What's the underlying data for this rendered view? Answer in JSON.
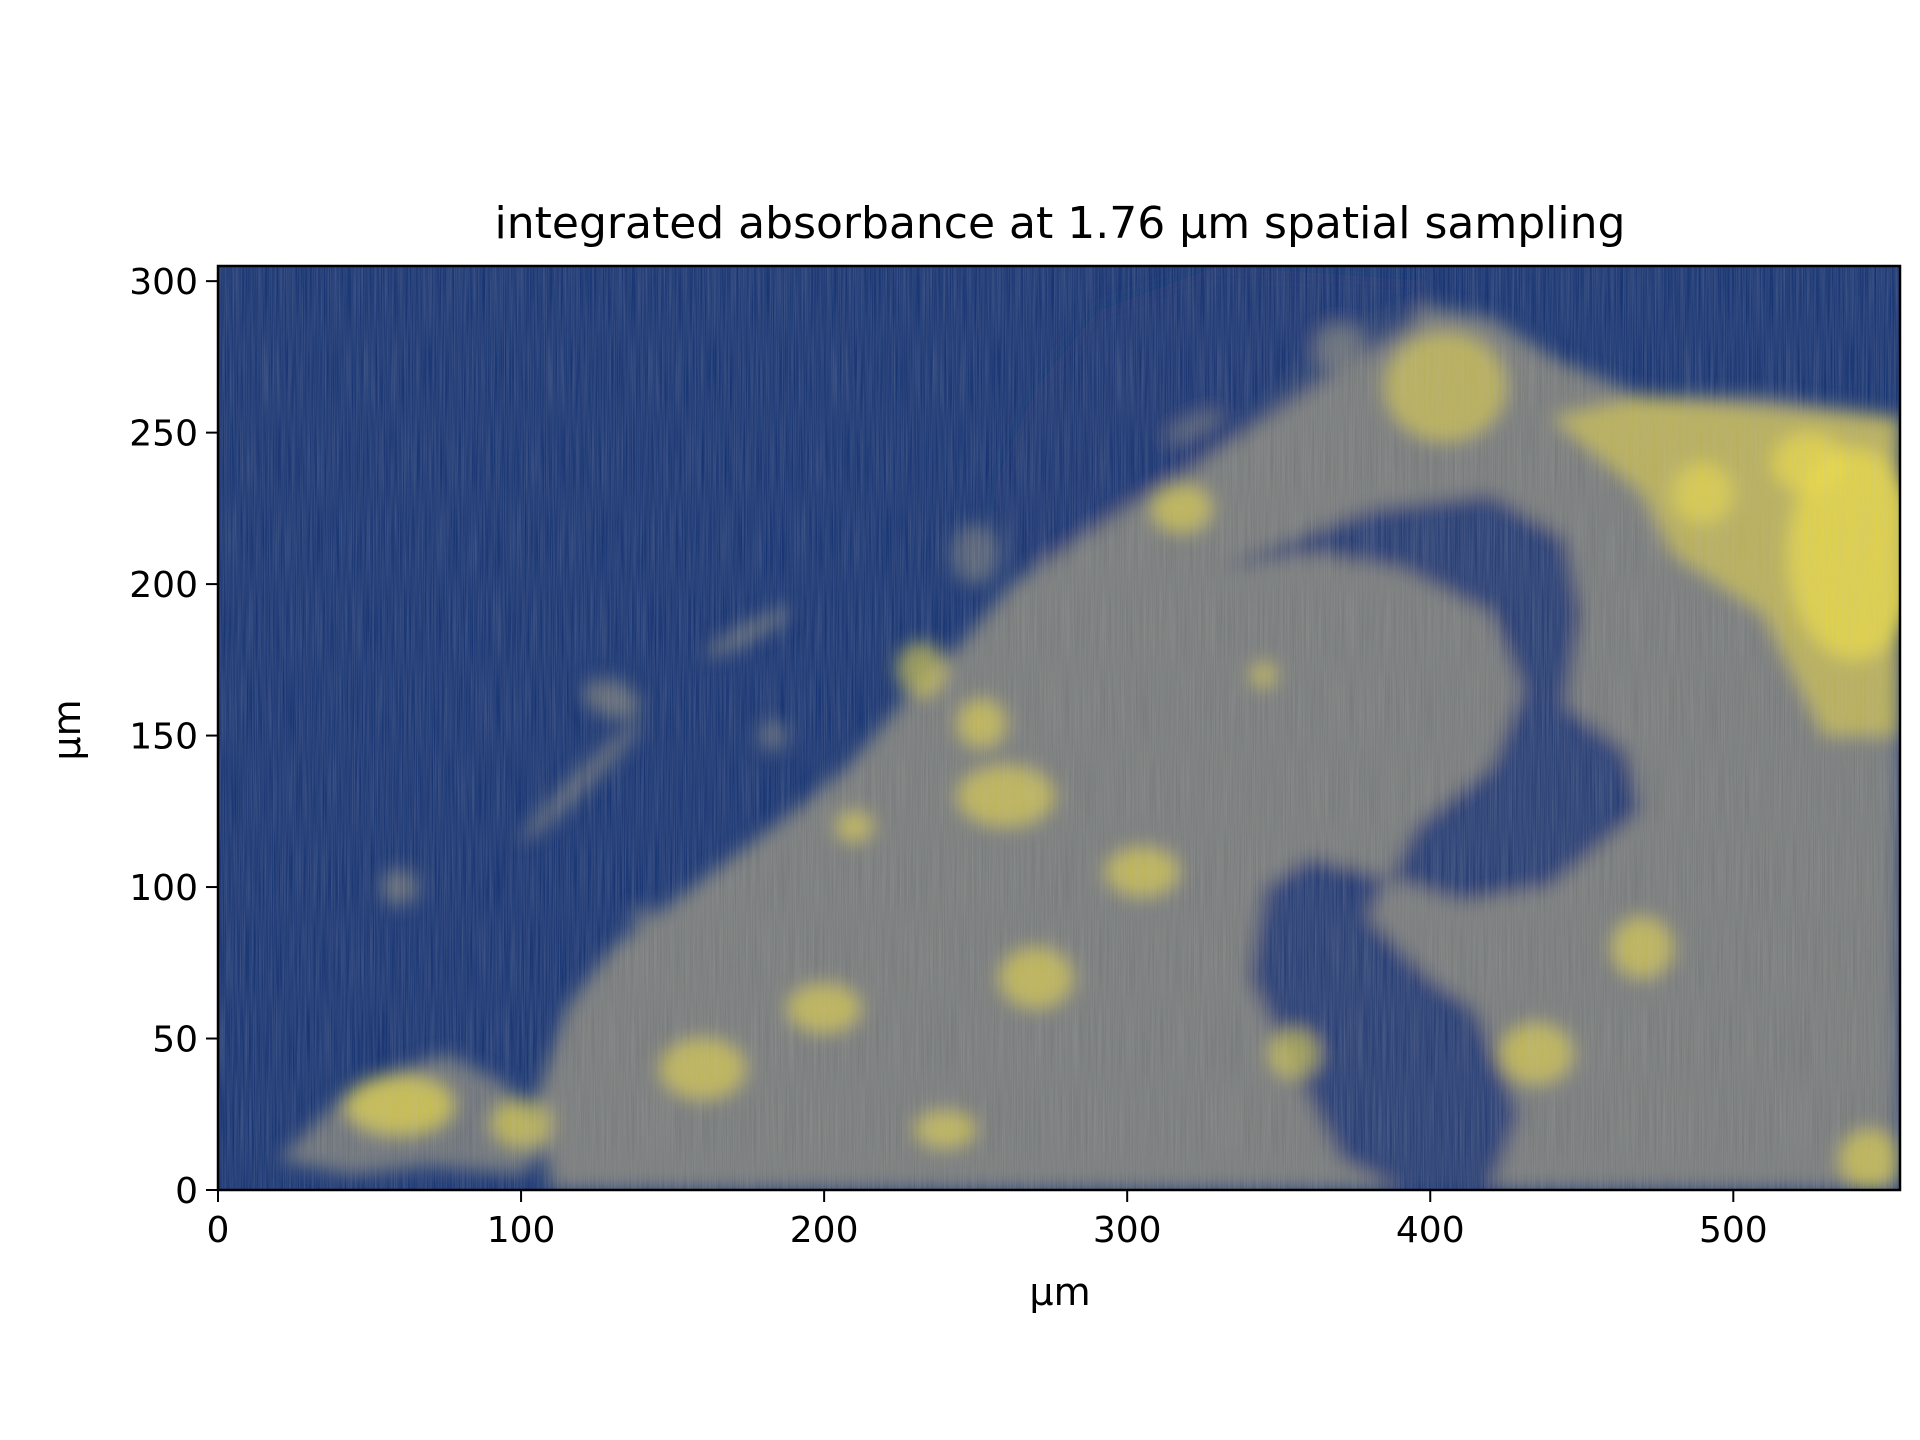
{
  "chart_data": {
    "type": "heatmap",
    "title": "integrated absorbance at 1.76 µm spatial sampling",
    "xlabel": "µm",
    "ylabel": "µm",
    "xlim": [
      0,
      555
    ],
    "ylim": [
      0,
      305
    ],
    "x_ticks": [
      0,
      100,
      200,
      300,
      400,
      500
    ],
    "y_ticks": [
      0,
      50,
      100,
      150,
      200,
      250,
      300
    ],
    "x_tick_labels": [
      "0",
      "100",
      "200",
      "300",
      "400",
      "500"
    ],
    "y_tick_labels": [
      "0",
      "50",
      "100",
      "150",
      "200",
      "250",
      "300"
    ],
    "colormap": [
      "#0b2a6e",
      "#7f7f78",
      "#f2df3a"
    ],
    "grid": false,
    "legend": "none"
  }
}
